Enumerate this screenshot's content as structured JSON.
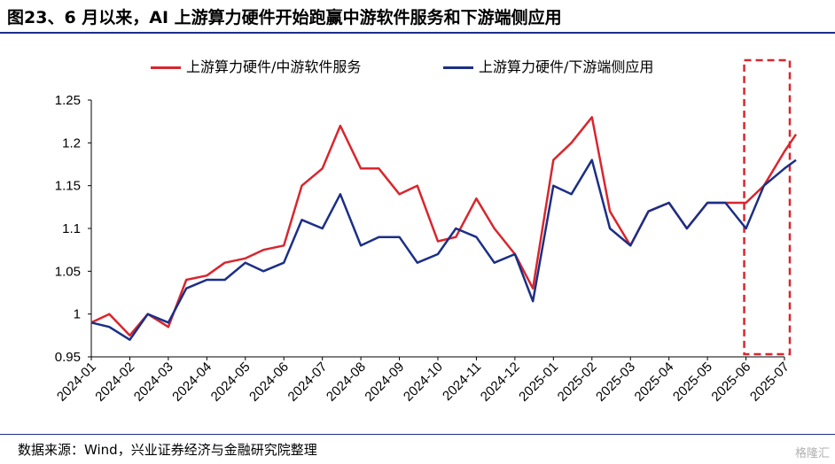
{
  "header": {
    "title": "图23、6 月以来，AI 上游算力硬件开始跑赢中游软件服务和下游端侧应用"
  },
  "source": "数据来源：Wind，兴业证券经济与金融研究院整理",
  "watermark": "格隆汇",
  "colors": {
    "series_red": "#d8262e",
    "series_navy": "#1b2f86",
    "highlight_box": "#d8262e",
    "rule": "#1b2f86"
  },
  "chart_data": {
    "type": "line",
    "title": "图23、6 月以来，AI 上游算力硬件开始跑赢中游软件服务和下游端侧应用",
    "xlabel": "",
    "ylabel": "",
    "ylim": [
      0.95,
      1.25
    ],
    "yticks": [
      0.95,
      1.0,
      1.05,
      1.1,
      1.15,
      1.2,
      1.25
    ],
    "ytick_labels": [
      "0.95",
      "1",
      "1.05",
      "1.1",
      "1.15",
      "1.2",
      "1.25"
    ],
    "xticks": [
      "2024-01",
      "2024-02",
      "2024-03",
      "2024-04",
      "2024-05",
      "2024-06",
      "2024-07",
      "2024-08",
      "2024-09",
      "2024-10",
      "2024-11",
      "2024-12",
      "2025-01",
      "2025-02",
      "2025-03",
      "2025-04",
      "2025-05",
      "2025-06",
      "2025-07"
    ],
    "grid": false,
    "legend_position": "top",
    "highlight": {
      "from": "2025-06",
      "to": "2025-07",
      "style": "dashed-box"
    },
    "series": [
      {
        "name": "上游算力硬件/中游软件服务",
        "color": "#d8262e",
        "x": [
          "2024-01",
          "2024-01-15",
          "2024-02",
          "2024-02-15",
          "2024-03",
          "2024-03-15",
          "2024-04",
          "2024-04-15",
          "2024-05",
          "2024-05-15",
          "2024-06",
          "2024-06-15",
          "2024-07",
          "2024-07-15",
          "2024-08",
          "2024-08-15",
          "2024-09",
          "2024-09-15",
          "2024-10",
          "2024-10-15",
          "2024-11",
          "2024-11-15",
          "2024-12",
          "2024-12-15",
          "2025-01",
          "2025-01-15",
          "2025-02",
          "2025-02-15",
          "2025-03",
          "2025-03-15",
          "2025-04",
          "2025-04-15",
          "2025-05",
          "2025-05-15",
          "2025-06",
          "2025-06-15",
          "2025-07",
          "2025-07-10"
        ],
        "values": [
          0.99,
          1.0,
          0.975,
          1.0,
          0.985,
          1.04,
          1.045,
          1.06,
          1.065,
          1.075,
          1.08,
          1.15,
          1.17,
          1.22,
          1.17,
          1.17,
          1.14,
          1.15,
          1.085,
          1.09,
          1.135,
          1.1,
          1.07,
          1.03,
          1.18,
          1.2,
          1.23,
          1.12,
          1.08,
          1.12,
          1.13,
          1.1,
          1.13,
          1.13,
          1.13,
          1.15,
          1.19,
          1.21
        ]
      },
      {
        "name": "上游算力硬件/下游端侧应用",
        "color": "#1b2f86",
        "x": [
          "2024-01",
          "2024-01-15",
          "2024-02",
          "2024-02-15",
          "2024-03",
          "2024-03-15",
          "2024-04",
          "2024-04-15",
          "2024-05",
          "2024-05-15",
          "2024-06",
          "2024-06-15",
          "2024-07",
          "2024-07-15",
          "2024-08",
          "2024-08-15",
          "2024-09",
          "2024-09-15",
          "2024-10",
          "2024-10-15",
          "2024-11",
          "2024-11-15",
          "2024-12",
          "2024-12-15",
          "2025-01",
          "2025-01-15",
          "2025-02",
          "2025-02-15",
          "2025-03",
          "2025-03-15",
          "2025-04",
          "2025-04-15",
          "2025-05",
          "2025-05-15",
          "2025-06",
          "2025-06-15",
          "2025-07",
          "2025-07-10"
        ],
        "values": [
          0.99,
          0.985,
          0.97,
          1.0,
          0.99,
          1.03,
          1.04,
          1.04,
          1.06,
          1.05,
          1.06,
          1.11,
          1.1,
          1.14,
          1.08,
          1.09,
          1.09,
          1.06,
          1.07,
          1.1,
          1.09,
          1.06,
          1.07,
          1.015,
          1.15,
          1.14,
          1.18,
          1.1,
          1.08,
          1.12,
          1.13,
          1.1,
          1.13,
          1.13,
          1.1,
          1.15,
          1.17,
          1.18
        ]
      }
    ]
  }
}
